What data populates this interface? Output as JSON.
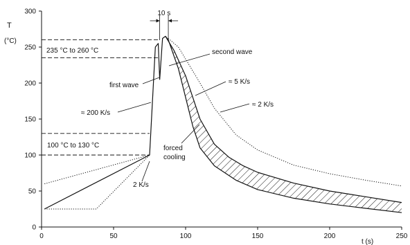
{
  "chart_data": {
    "type": "line",
    "title": "",
    "xlabel": "t (s)",
    "ylabel": "T",
    "ylabel_unit": "(°C)",
    "xlim": [
      0,
      250
    ],
    "ylim": [
      0,
      300
    ],
    "x_ticks": [
      0,
      50,
      100,
      150,
      200,
      250
    ],
    "y_ticks": [
      0,
      50,
      100,
      150,
      200,
      250,
      300
    ],
    "grid": false,
    "legend": "none",
    "series": [
      {
        "style": "solid",
        "points": [
          [
            2,
            25
          ],
          [
            75,
            100
          ],
          [
            79,
            250
          ],
          [
            81,
            255
          ],
          [
            82,
            205
          ],
          [
            84,
            262
          ],
          [
            86,
            265
          ],
          [
            88,
            260
          ],
          [
            95,
            220
          ],
          [
            100,
            180
          ],
          [
            105,
            140
          ],
          [
            110,
            110
          ],
          [
            120,
            85
          ],
          [
            135,
            65
          ],
          [
            150,
            52
          ],
          [
            175,
            40
          ],
          [
            200,
            32
          ],
          [
            225,
            26
          ],
          [
            250,
            20
          ]
        ]
      },
      {
        "style": "solid",
        "points": [
          [
            86,
            265
          ],
          [
            92,
            245
          ],
          [
            100,
            210
          ],
          [
            110,
            150
          ],
          [
            120,
            115
          ],
          [
            130,
            97
          ],
          [
            140,
            85
          ],
          [
            150,
            76
          ],
          [
            175,
            61
          ],
          [
            200,
            50
          ],
          [
            225,
            42
          ],
          [
            250,
            34
          ]
        ]
      },
      {
        "style": "dotted",
        "points": [
          [
            2,
            25
          ],
          [
            38,
            25
          ],
          [
            75,
            100
          ]
        ]
      },
      {
        "style": "dotted",
        "points": [
          [
            2,
            60
          ],
          [
            75,
            100
          ]
        ]
      },
      {
        "style": "dotted",
        "points": [
          [
            88,
            262
          ],
          [
            95,
            250
          ],
          [
            110,
            200
          ],
          [
            120,
            165
          ],
          [
            135,
            128
          ],
          [
            150,
            107
          ],
          [
            175,
            86
          ],
          [
            200,
            74
          ],
          [
            225,
            65
          ],
          [
            250,
            57
          ]
        ]
      }
    ],
    "hatched_band": {
      "upper": [
        [
          86,
          265
        ],
        [
          92,
          245
        ],
        [
          100,
          210
        ],
        [
          110,
          150
        ],
        [
          120,
          115
        ],
        [
          130,
          97
        ],
        [
          140,
          85
        ],
        [
          150,
          76
        ],
        [
          175,
          61
        ],
        [
          200,
          50
        ],
        [
          225,
          42
        ],
        [
          250,
          34
        ]
      ],
      "lower": [
        [
          88,
          260
        ],
        [
          95,
          220
        ],
        [
          100,
          180
        ],
        [
          105,
          140
        ],
        [
          110,
          110
        ],
        [
          120,
          85
        ],
        [
          135,
          65
        ],
        [
          150,
          52
        ],
        [
          175,
          40
        ],
        [
          200,
          32
        ],
        [
          225,
          26
        ],
        [
          250,
          20
        ]
      ]
    },
    "reference_lines": [
      {
        "y": 260,
        "x_end": 82
      },
      {
        "y": 235,
        "x_end": 82
      },
      {
        "y": 130,
        "x_end": 75
      },
      {
        "y": 100,
        "x_end": 75
      }
    ],
    "window_markers": {
      "x1": 82,
      "x2": 88,
      "label": "10 s"
    },
    "annotations": [
      {
        "id": "range-high",
        "text": "235 °C  to  260 °C"
      },
      {
        "id": "range-low",
        "text": "100 °C  to  130 °C"
      },
      {
        "id": "first-wave",
        "text": "first wave"
      },
      {
        "id": "second-wave",
        "text": "second wave"
      },
      {
        "id": "rate-200",
        "text": "≈ 200 K/s"
      },
      {
        "id": "rate-5",
        "text": "≈ 5 K/s"
      },
      {
        "id": "rate-2a",
        "text": "≈ 2 K/s"
      },
      {
        "id": "rate-2b",
        "text": "2 K/s"
      },
      {
        "id": "forced-1",
        "text": "forced"
      },
      {
        "id": "forced-2",
        "text": "cooling"
      }
    ]
  }
}
